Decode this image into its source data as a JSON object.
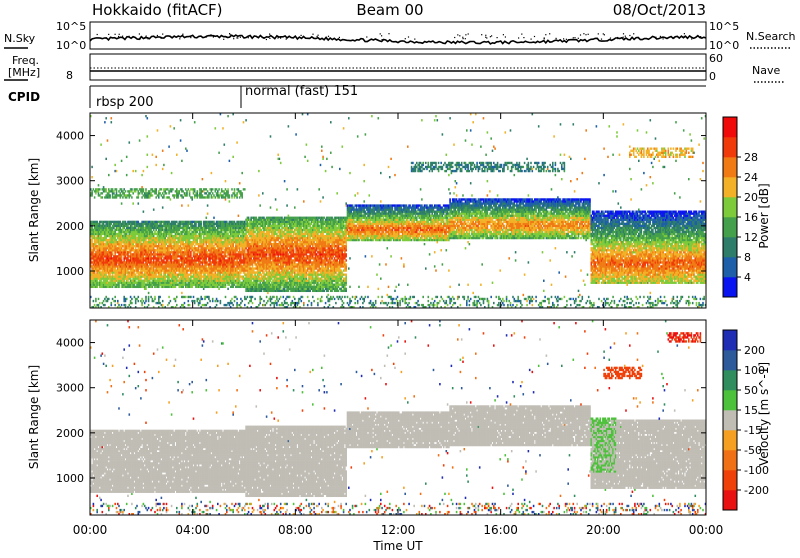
{
  "header": {
    "radar": "Hokkaido (fitACF)",
    "beam": "Beam 00",
    "date": "08/Oct/2013"
  },
  "noise_panel": {
    "left_label": "N.Sky",
    "right_label": "N.Search",
    "left_ticks": [
      "10^5",
      "10^0"
    ],
    "right_ticks": [
      "10^5",
      "10^0"
    ]
  },
  "freq_panel": {
    "left_label_1": "Freq.",
    "left_label_2": "[MHz]",
    "left_ticks": [
      "8"
    ],
    "right_label": "Nave",
    "right_ticks": [
      "60",
      "0"
    ]
  },
  "cpid_panel": {
    "label": "CPID",
    "programs": [
      {
        "name": "rbsp 200",
        "start_hour": 0,
        "end_hour": 6
      },
      {
        "name": "normal (fast) 151",
        "start_hour": 6,
        "end_hour": 24
      }
    ]
  },
  "colors": {
    "power": [
      "#0a14f0",
      "#1d5fa8",
      "#2e7d6a",
      "#44a04a",
      "#7dcb3a",
      "#f2b126",
      "#f07a14",
      "#f03a0a",
      "#f00a0a"
    ],
    "velocity": [
      "#1f2db5",
      "#2c5a9a",
      "#2f8d5e",
      "#4cc13a",
      "#c0bdb5",
      "#f5a020",
      "#f07016",
      "#f0400a",
      "#e81010"
    ],
    "ground_scatter": "#c0bdb5"
  },
  "chart_data": [
    {
      "type": "heatmap",
      "title": "",
      "quantity": "Power",
      "xlabel": "",
      "ylabel": "Slant Range [km]",
      "colorbar_label": "Power [dB]",
      "colorbar_ticks": [
        "4",
        "8",
        "12",
        "16",
        "20",
        "24",
        "28"
      ],
      "x_range_hours": [
        0,
        24
      ],
      "ylim_km": [
        180,
        4500
      ],
      "yticks": [
        "1000",
        "2000",
        "3000",
        "4000"
      ],
      "scatter_bands": [
        {
          "start": 0,
          "end": 6,
          "low": 600,
          "high": 2100,
          "core": 1250,
          "power_db": 28
        },
        {
          "start": 6,
          "end": 10,
          "low": 500,
          "high": 2200,
          "core": 1350,
          "power_db": 28
        },
        {
          "start": 10,
          "end": 14,
          "low": 1650,
          "high": 2450,
          "core": 1900,
          "power_db": 26
        },
        {
          "start": 14,
          "end": 19.5,
          "low": 1700,
          "high": 2600,
          "core": 2000,
          "power_db": 24
        },
        {
          "start": 19.5,
          "end": 24,
          "low": 700,
          "high": 2300,
          "core": 1150,
          "power_db": 26
        }
      ],
      "upper_echoes": [
        {
          "start": 12.5,
          "end": 18.5,
          "range": 3300,
          "power_db": 8
        },
        {
          "start": 0,
          "end": 6,
          "range": 2700,
          "power_db": 12
        },
        {
          "start": 21,
          "end": 23.5,
          "range": 3600,
          "power_db": 20
        }
      ]
    },
    {
      "type": "heatmap",
      "title": "",
      "quantity": "Velocity",
      "xlabel": "Time UT",
      "ylabel": "Slant Range [km]",
      "colorbar_label": "Velocity [m s^-1]",
      "colorbar_ticks": [
        "200",
        "100",
        "50",
        "15",
        "-15",
        "-50",
        "-100",
        "-200"
      ],
      "x_range_hours": [
        0,
        24
      ],
      "xticks": [
        "00:00",
        "04:00",
        "08:00",
        "12:00",
        "16:00",
        "20:00",
        "00:00"
      ],
      "ylim_km": [
        180,
        4500
      ],
      "yticks": [
        "1000",
        "2000",
        "3000",
        "4000"
      ],
      "ground_scatter_bands": [
        {
          "start": 0,
          "end": 6,
          "low": 650,
          "high": 2050
        },
        {
          "start": 6,
          "end": 10,
          "low": 550,
          "high": 2150
        },
        {
          "start": 10,
          "end": 14,
          "low": 1650,
          "high": 2450
        },
        {
          "start": 14,
          "end": 19.5,
          "low": 1700,
          "high": 2600
        },
        {
          "start": 19.5,
          "end": 24,
          "low": 750,
          "high": 2250
        }
      ],
      "ionospheric_echoes": [
        {
          "start": 19.5,
          "end": 20.5,
          "low": 1100,
          "high": 2300,
          "velocity": 30
        },
        {
          "start": 20,
          "end": 21.5,
          "range": 3300,
          "velocity": -150
        },
        {
          "start": 22.5,
          "end": 23.8,
          "range": 4100,
          "velocity": -200
        }
      ]
    }
  ]
}
